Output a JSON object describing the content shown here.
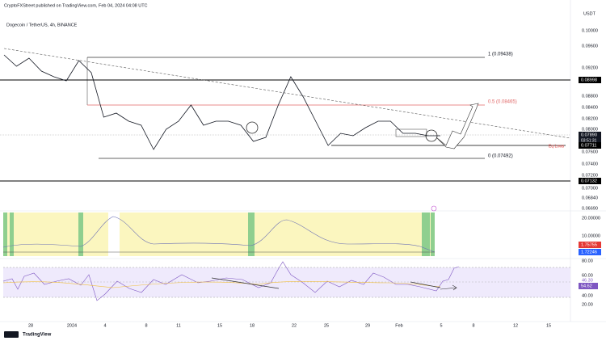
{
  "header": {
    "published": "CryptoFXStreet published on TradingView.com, Feb 04, 2024 04:08 UTC",
    "symbol": "Dogecoin / TetherUS, 4h, BINANCE",
    "currency": "USDT"
  },
  "price_axis": {
    "ticks": [
      "0.10000",
      "0.09600",
      "0.09200",
      "0.08800",
      "0.08400",
      "0.08200",
      "0.08000",
      "0.07600",
      "0.07400",
      "0.07200",
      "0.07000",
      "0.06840",
      "0.06690"
    ],
    "boxed": [
      "0.08998",
      "0.07890",
      "0.07711",
      "0.07132"
    ],
    "countdown": "03:51:31"
  },
  "annotations": {
    "fib_1": "1 (0.09438)",
    "fib_05": "0.5 (0.08465)",
    "fib_0": "0 (0.07492)",
    "eq_lows": "Eq Lows"
  },
  "price_pane": {
    "ylim": [
      0.06528,
      0.10078
    ],
    "closes": [
      0.09486,
      0.09268,
      0.09424,
      0.09175,
      0.09066,
      0.08988,
      0.09377,
      0.09144,
      0.08287,
      0.08365,
      0.0821,
      0.08132,
      0.07665,
      0.08054,
      0.0821,
      0.08521,
      0.08132,
      0.0821,
      0.0821,
      0.08132,
      0.0782,
      0.07898,
      0.08521,
      0.09066,
      0.08677,
      0.0821,
      0.07742,
      0.07976,
      0.07929,
      0.08085,
      0.0821,
      0.0821,
      0.07976,
      0.07976,
      0.07929,
      0.07929
    ]
  },
  "indicator_axis": {
    "ticks": [
      "20.00000",
      "10.00000"
    ],
    "boxed": [
      "1.75755",
      "1.72246"
    ]
  },
  "rsi_axis": {
    "ticks": [
      "80.00",
      "60.00",
      "40.00",
      "20.00"
    ],
    "boxed": [
      "46.30",
      "54.62"
    ]
  },
  "date_axis": [
    "28",
    "2024",
    "4",
    "8",
    "11",
    "15",
    "18",
    "22",
    "25",
    "29",
    "Feb",
    "5",
    "8",
    "12",
    "15"
  ],
  "footer": "TradingView"
}
